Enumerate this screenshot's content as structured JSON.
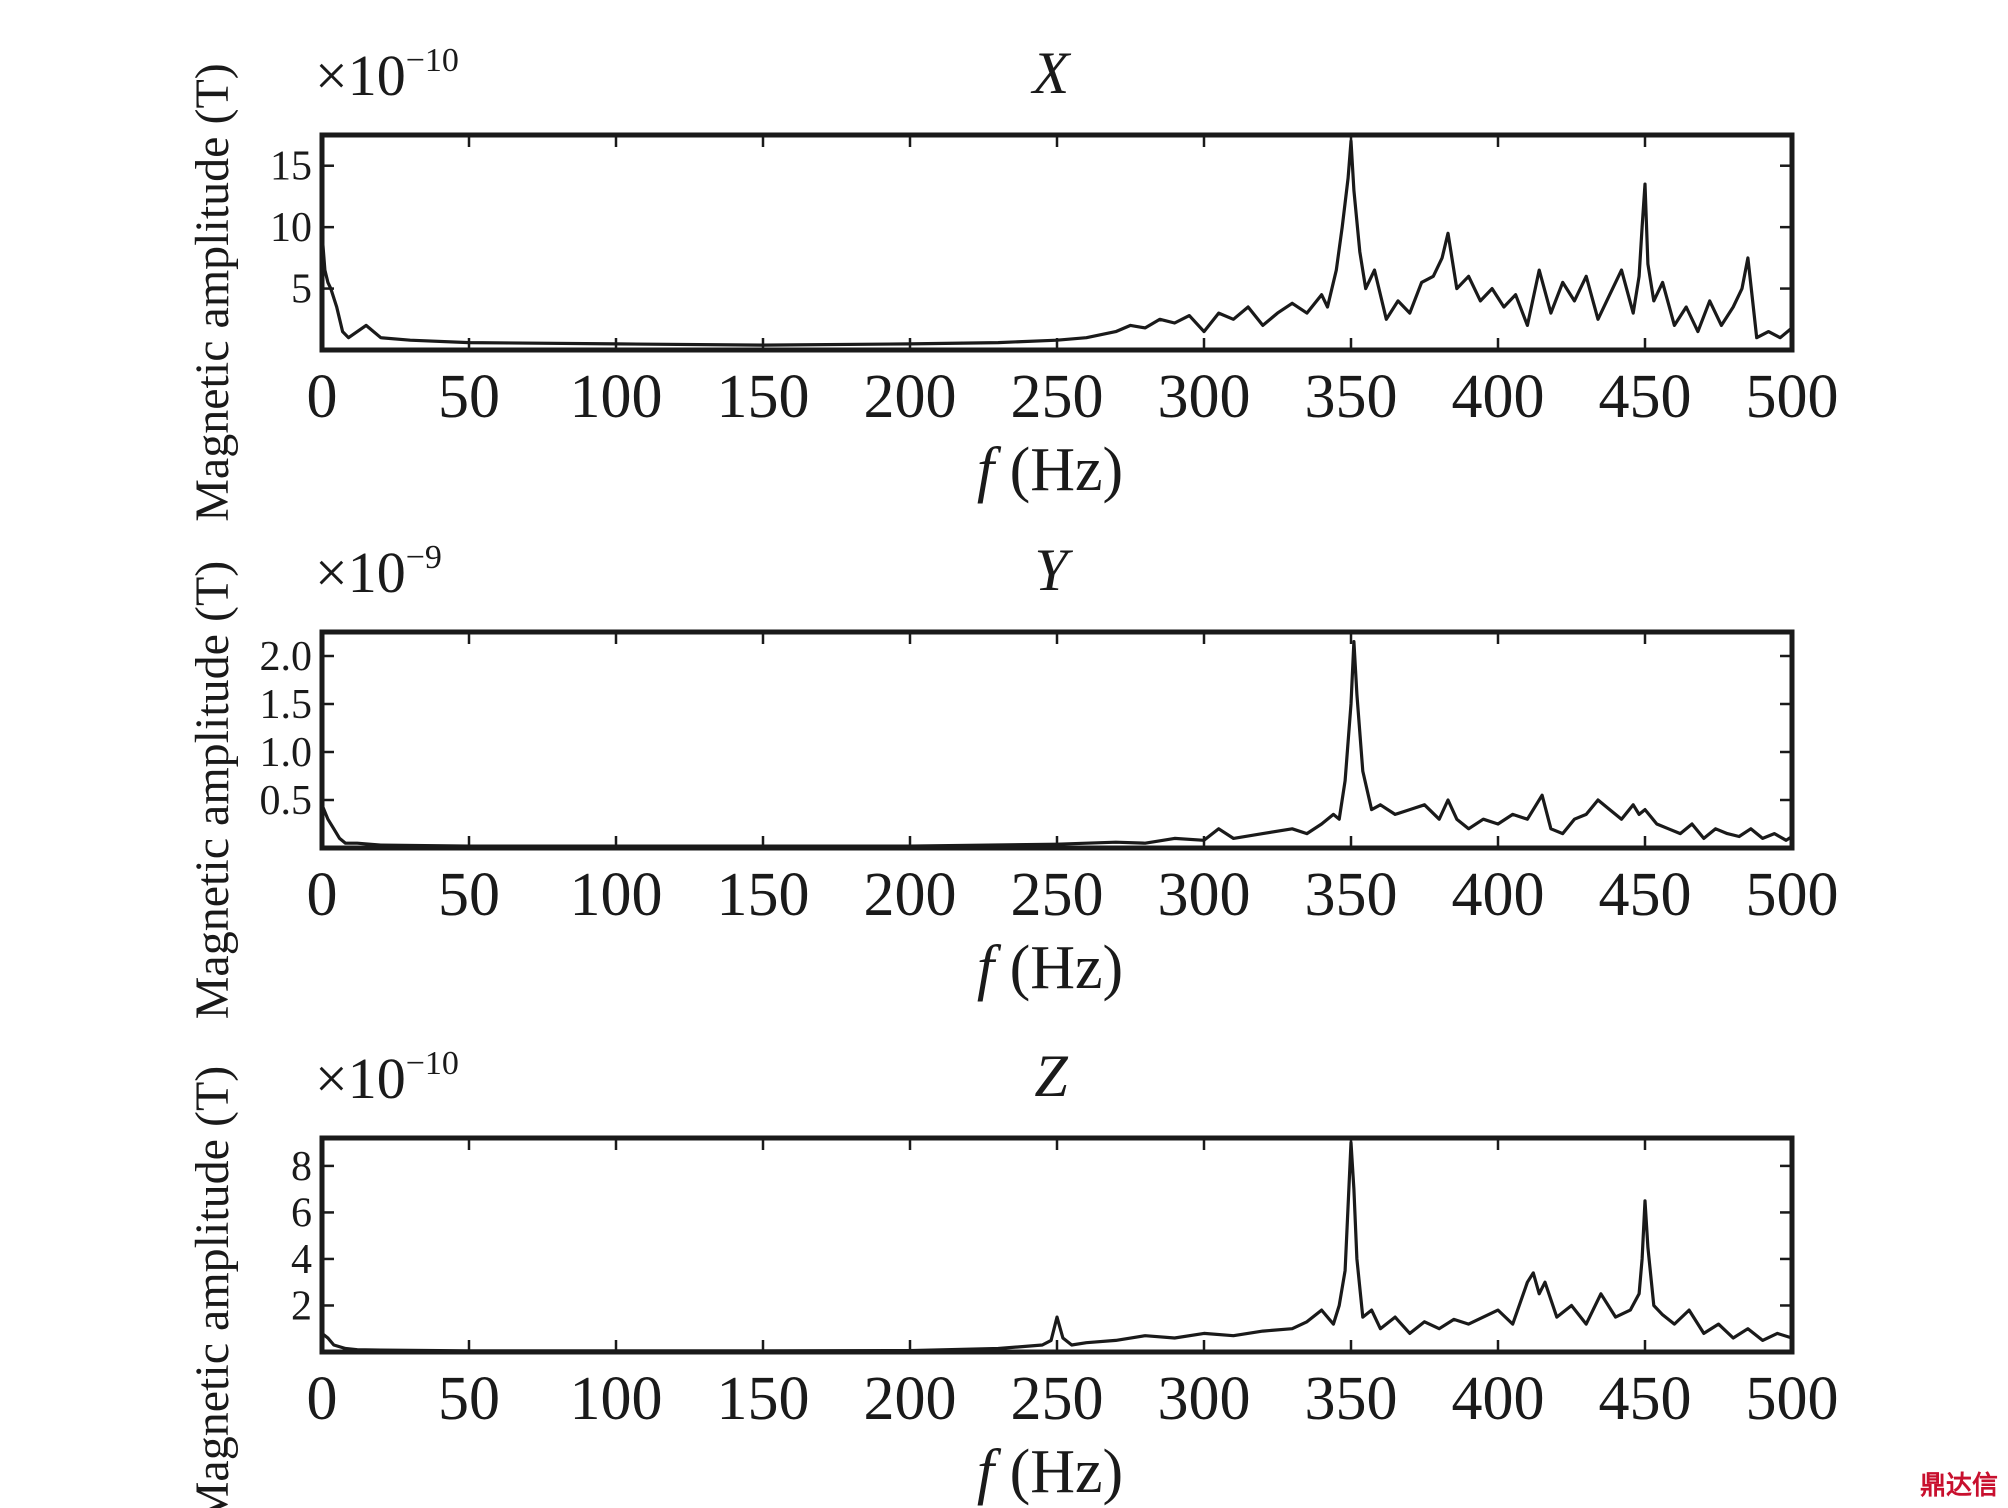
{
  "chart_data": [
    {
      "type": "line",
      "title": "X",
      "scale_label": "×10",
      "scale_exponent": "−10",
      "xlabel_italic": "f",
      "xlabel": " (Hz)",
      "ylabel": "Magnetic amplitude (T)",
      "xlim": [
        0,
        500
      ],
      "ylim": [
        0,
        17.5
      ],
      "xticks": [
        "0",
        "50",
        "100",
        "150",
        "200",
        "250",
        "300",
        "350",
        "400",
        "450",
        "500"
      ],
      "yticks": [
        {
          "v": 5,
          "label": "5"
        },
        {
          "v": 10,
          "label": "10"
        },
        {
          "v": 15,
          "label": "15"
        }
      ],
      "series": [
        {
          "x": [
            0,
            1,
            2,
            3,
            5,
            7,
            9,
            12,
            15,
            20,
            30,
            50,
            100,
            150,
            200,
            230,
            250,
            260,
            270,
            275,
            280,
            285,
            290,
            295,
            300,
            305,
            310,
            315,
            320,
            325,
            330,
            335,
            340,
            342,
            345,
            347,
            349,
            350,
            351,
            353,
            355,
            358,
            362,
            366,
            370,
            374,
            378,
            381,
            383,
            386,
            390,
            394,
            398,
            402,
            406,
            410,
            414,
            418,
            422,
            426,
            430,
            434,
            438,
            442,
            446,
            448,
            449,
            450,
            451,
            453,
            456,
            460,
            464,
            468,
            472,
            476,
            480,
            483,
            485,
            488,
            492,
            496,
            500
          ],
          "y": [
            9.5,
            6.5,
            5.5,
            5.0,
            3.5,
            1.5,
            1.0,
            1.5,
            2.0,
            1.0,
            0.8,
            0.6,
            0.5,
            0.4,
            0.5,
            0.6,
            0.8,
            1.0,
            1.5,
            2.0,
            1.8,
            2.5,
            2.2,
            2.8,
            1.5,
            3.0,
            2.5,
            3.5,
            2.0,
            3.0,
            3.8,
            3.0,
            4.5,
            3.5,
            6.5,
            10.0,
            14.0,
            17.0,
            13.0,
            8.0,
            5.0,
            6.5,
            2.5,
            4.0,
            3.0,
            5.5,
            6.0,
            7.5,
            9.5,
            5.0,
            6.0,
            4.0,
            5.0,
            3.5,
            4.5,
            2.0,
            6.5,
            3.0,
            5.5,
            4.0,
            6.0,
            2.5,
            4.5,
            6.5,
            3.0,
            6.0,
            10.0,
            13.5,
            7.0,
            4.0,
            5.5,
            2.0,
            3.5,
            1.5,
            4.0,
            2.0,
            3.5,
            5.0,
            7.5,
            1.0,
            1.5,
            1.0,
            1.8
          ]
        }
      ]
    },
    {
      "type": "line",
      "title": "Y",
      "scale_label": "×10",
      "scale_exponent": "−9",
      "xlabel_italic": "f",
      "xlabel": " (Hz)",
      "ylabel": "Magnetic amplitude (T)",
      "xlim": [
        0,
        500
      ],
      "ylim": [
        0,
        2.25
      ],
      "xticks": [
        "0",
        "50",
        "100",
        "150",
        "200",
        "250",
        "300",
        "350",
        "400",
        "450",
        "500"
      ],
      "yticks": [
        {
          "v": 0.5,
          "label": "0.5"
        },
        {
          "v": 1.0,
          "label": "1.0"
        },
        {
          "v": 1.5,
          "label": "1.5"
        },
        {
          "v": 2.0,
          "label": "2.0"
        }
      ],
      "series": [
        {
          "x": [
            0,
            2,
            4,
            6,
            8,
            12,
            20,
            50,
            100,
            150,
            200,
            250,
            270,
            280,
            290,
            300,
            305,
            310,
            320,
            330,
            335,
            340,
            344,
            346,
            348,
            350,
            351,
            352,
            354,
            357,
            360,
            365,
            370,
            375,
            380,
            383,
            386,
            390,
            395,
            400,
            405,
            410,
            413,
            415,
            418,
            422,
            426,
            430,
            434,
            438,
            442,
            446,
            448,
            450,
            454,
            458,
            462,
            466,
            470,
            474,
            478,
            482,
            486,
            490,
            494,
            498,
            500
          ],
          "y": [
            0.45,
            0.3,
            0.2,
            0.1,
            0.05,
            0.05,
            0.03,
            0.02,
            0.02,
            0.02,
            0.02,
            0.04,
            0.06,
            0.05,
            0.1,
            0.08,
            0.2,
            0.1,
            0.15,
            0.2,
            0.15,
            0.25,
            0.35,
            0.3,
            0.7,
            1.5,
            2.15,
            1.6,
            0.8,
            0.4,
            0.45,
            0.35,
            0.4,
            0.45,
            0.3,
            0.5,
            0.3,
            0.2,
            0.3,
            0.25,
            0.35,
            0.3,
            0.45,
            0.55,
            0.2,
            0.15,
            0.3,
            0.35,
            0.5,
            0.4,
            0.3,
            0.45,
            0.35,
            0.4,
            0.25,
            0.2,
            0.15,
            0.25,
            0.1,
            0.2,
            0.15,
            0.12,
            0.2,
            0.1,
            0.15,
            0.08,
            0.12
          ]
        }
      ]
    },
    {
      "type": "line",
      "title": "Z",
      "scale_label": "×10",
      "scale_exponent": "−10",
      "xlabel_italic": "f",
      "xlabel": " (Hz)",
      "ylabel": "Magnetic amplitude (T)",
      "xlim": [
        0,
        500
      ],
      "ylim": [
        0,
        9.2
      ],
      "xticks": [
        "0",
        "50",
        "100",
        "150",
        "200",
        "250",
        "300",
        "350",
        "400",
        "450",
        "500"
      ],
      "yticks": [
        {
          "v": 2,
          "label": "2"
        },
        {
          "v": 4,
          "label": "4"
        },
        {
          "v": 6,
          "label": "6"
        },
        {
          "v": 8,
          "label": "8"
        }
      ],
      "series": [
        {
          "x": [
            0,
            2,
            4,
            8,
            12,
            20,
            50,
            100,
            150,
            200,
            230,
            245,
            248,
            250,
            252,
            255,
            260,
            270,
            280,
            290,
            300,
            310,
            320,
            330,
            335,
            340,
            344,
            346,
            348,
            350,
            351,
            352,
            354,
            357,
            360,
            365,
            370,
            375,
            380,
            385,
            390,
            395,
            400,
            405,
            410,
            412,
            414,
            416,
            420,
            425,
            430,
            435,
            440,
            445,
            448,
            449,
            450,
            451,
            453,
            456,
            460,
            465,
            470,
            475,
            480,
            485,
            490,
            495,
            500
          ],
          "y": [
            0.8,
            0.6,
            0.3,
            0.15,
            0.1,
            0.08,
            0.05,
            0.05,
            0.05,
            0.06,
            0.15,
            0.3,
            0.5,
            1.5,
            0.6,
            0.3,
            0.4,
            0.5,
            0.7,
            0.6,
            0.8,
            0.7,
            0.9,
            1.0,
            1.3,
            1.8,
            1.2,
            2.0,
            3.5,
            9.0,
            7.0,
            4.0,
            1.5,
            1.8,
            1.0,
            1.5,
            0.8,
            1.3,
            1.0,
            1.4,
            1.2,
            1.5,
            1.8,
            1.2,
            3.0,
            3.4,
            2.5,
            3.0,
            1.5,
            2.0,
            1.2,
            2.5,
            1.5,
            1.8,
            2.5,
            4.0,
            6.5,
            4.5,
            2.0,
            1.6,
            1.2,
            1.8,
            0.8,
            1.2,
            0.6,
            1.0,
            0.5,
            0.8,
            0.6
          ]
        }
      ]
    }
  ],
  "watermark": "鼎达信"
}
